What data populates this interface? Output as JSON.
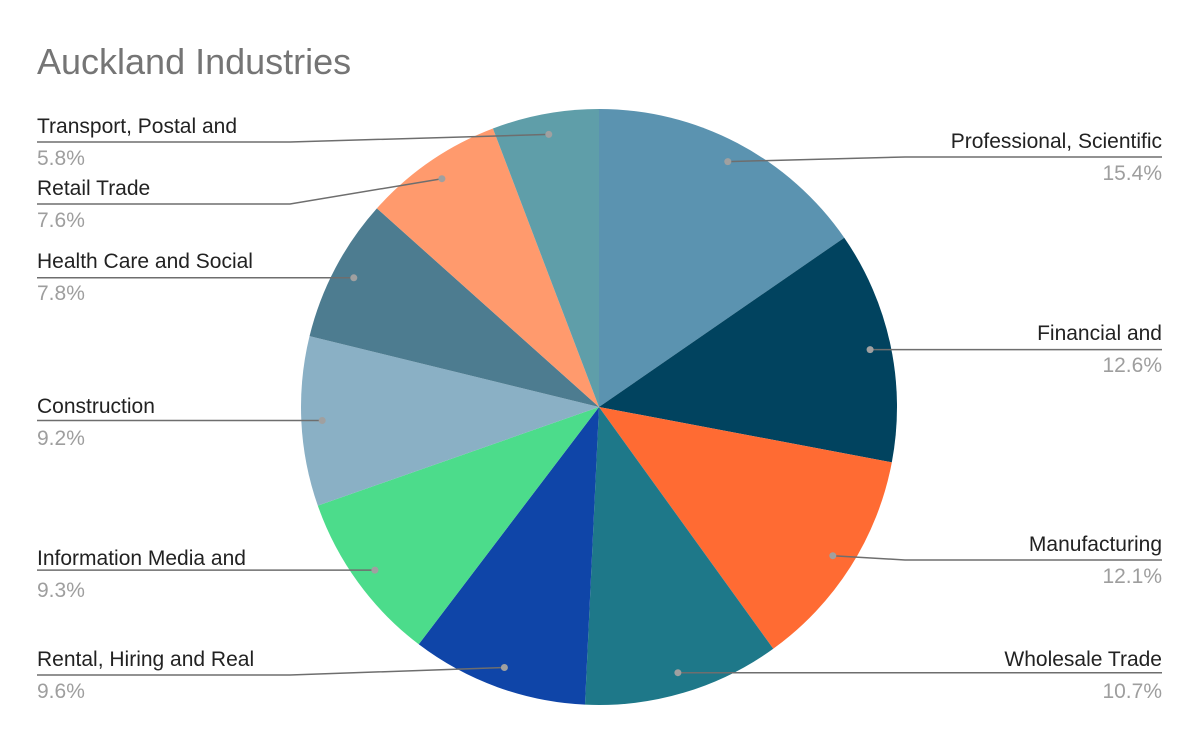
{
  "chart_data": {
    "type": "pie",
    "title": "Auckland Industries",
    "slices": [
      {
        "label": "Professional, Scientific",
        "value": 15.4,
        "display": "15.4%",
        "color": "#5b93b0"
      },
      {
        "label": "Financial and",
        "value": 12.6,
        "display": "12.6%",
        "color": "#01435f"
      },
      {
        "label": "Manufacturing",
        "value": 12.1,
        "display": "12.1%",
        "color": "#ff6b33"
      },
      {
        "label": "Wholesale Trade",
        "value": 10.7,
        "display": "10.7%",
        "color": "#1e7889"
      },
      {
        "label": "Rental, Hiring and Real",
        "value": 9.6,
        "display": "9.6%",
        "color": "#0f45a8"
      },
      {
        "label": "Information Media and",
        "value": 9.3,
        "display": "9.3%",
        "color": "#4cdc8b"
      },
      {
        "label": "Construction",
        "value": 9.2,
        "display": "9.2%",
        "color": "#8ab0c5"
      },
      {
        "label": "Health Care and Social",
        "value": 7.8,
        "display": "7.8%",
        "color": "#4d7c90"
      },
      {
        "label": "Retail Trade",
        "value": 7.6,
        "display": "7.6%",
        "color": "#ff9a6d"
      },
      {
        "label": "Transport, Postal and",
        "value": 5.8,
        "display": "5.8%",
        "color": "#5f9ea9"
      }
    ]
  }
}
